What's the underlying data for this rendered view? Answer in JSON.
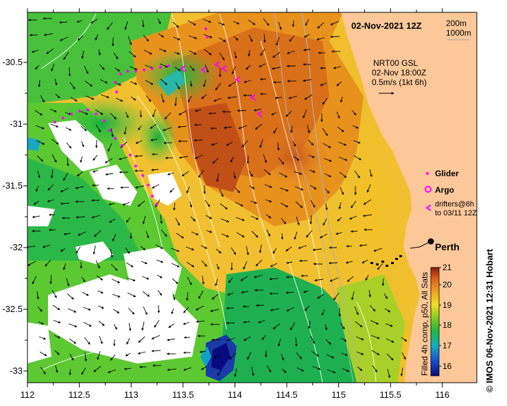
{
  "title": "02-Nov-2021 12Z",
  "depth_legend": {
    "contour1": "200m",
    "contour2": "1000m"
  },
  "currents": {
    "line1": "NRT00 GSL",
    "line2": "02-Nov 18:00Z",
    "line3": "0.5m/s (1kt 6h)"
  },
  "legend": {
    "glider": "Glider",
    "argo": "Argo",
    "drifters1": "drifters@6h",
    "drifters2": "to 03/11 12Z"
  },
  "city": "Perth",
  "colorbar": {
    "ticks": [
      "16",
      "17",
      "18",
      "19",
      "20",
      "21"
    ],
    "label": "Filled 4h comp, p50, All Sats",
    "min": 15.5,
    "max": 21
  },
  "credit": "© IMOS 06-Nov-2021 12:31 Hobart",
  "axes": {
    "x_ticks": [
      "112",
      "112.5",
      "113",
      "113.5",
      "114",
      "114.5",
      "115",
      "115.5",
      "116"
    ],
    "y_ticks": [
      "-30.5",
      "-31",
      "-31.5",
      "-32",
      "-32.5",
      "-33"
    ]
  },
  "colors": {
    "land": "#fcc89a",
    "glider": "#ff00ff",
    "ocean_warm": "#e07a1c",
    "ocean_cool": "#20c040"
  }
}
